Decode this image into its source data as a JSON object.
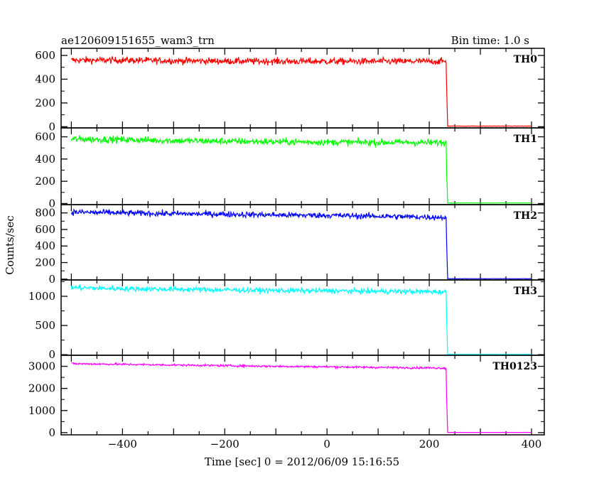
{
  "chart_data": {
    "type": "line",
    "title": "ae120609151655_wam3_trn",
    "bin_time": "Bin time: 1.0 s",
    "xlabel": "Time [sec] 0 = 2012/06/09 15:16:55",
    "ylabel": "Counts/sec",
    "xlim": [
      -520,
      425
    ],
    "xticks": [
      -400,
      -200,
      0,
      200,
      400
    ],
    "grid": false,
    "panels": [
      {
        "name": "TH0",
        "color": "#ff0000",
        "ylim": [
          -10,
          660
        ],
        "yticks": [
          0,
          200,
          400,
          600
        ],
        "points": [
          [
            -500,
            560
          ],
          [
            -400,
            560
          ],
          [
            -300,
            555
          ],
          [
            -200,
            552
          ],
          [
            -100,
            550
          ],
          [
            0,
            550
          ],
          [
            100,
            550
          ],
          [
            200,
            550
          ],
          [
            233,
            550
          ],
          [
            234,
            320
          ],
          [
            236,
            5
          ],
          [
            400,
            5
          ]
        ],
        "noise": 28
      },
      {
        "name": "TH1",
        "color": "#00ff00",
        "ylim": [
          -10,
          680
        ],
        "yticks": [
          0,
          200,
          400,
          600
        ],
        "points": [
          [
            -500,
            580
          ],
          [
            -400,
            575
          ],
          [
            -300,
            565
          ],
          [
            -200,
            560
          ],
          [
            -100,
            555
          ],
          [
            0,
            552
          ],
          [
            100,
            550
          ],
          [
            200,
            548
          ],
          [
            233,
            548
          ],
          [
            234,
            280
          ],
          [
            236,
            5
          ],
          [
            400,
            5
          ]
        ],
        "noise": 30
      },
      {
        "name": "TH2",
        "color": "#0000ff",
        "ylim": [
          -10,
          900
        ],
        "yticks": [
          0,
          200,
          400,
          600,
          800
        ],
        "points": [
          [
            -500,
            810
          ],
          [
            -400,
            800
          ],
          [
            -300,
            790
          ],
          [
            -200,
            785
          ],
          [
            -100,
            775
          ],
          [
            0,
            770
          ],
          [
            100,
            760
          ],
          [
            200,
            750
          ],
          [
            233,
            745
          ],
          [
            234,
            420
          ],
          [
            236,
            5
          ],
          [
            400,
            5
          ]
        ],
        "noise": 35
      },
      {
        "name": "TH3",
        "color": "#00ffff",
        "ylim": [
          -10,
          1280
        ],
        "yticks": [
          0,
          500,
          1000
        ],
        "points": [
          [
            -500,
            1150
          ],
          [
            -400,
            1130
          ],
          [
            -300,
            1120
          ],
          [
            -200,
            1110
          ],
          [
            -100,
            1100
          ],
          [
            0,
            1095
          ],
          [
            100,
            1085
          ],
          [
            200,
            1080
          ],
          [
            233,
            1075
          ],
          [
            234,
            600
          ],
          [
            236,
            5
          ],
          [
            400,
            5
          ]
        ],
        "noise": 45
      },
      {
        "name": "TH0123",
        "color": "#ff00ff",
        "ylim": [
          -100,
          3500
        ],
        "yticks": [
          0,
          1000,
          2000,
          3000
        ],
        "points": [
          [
            -500,
            3120
          ],
          [
            -400,
            3090
          ],
          [
            -300,
            3060
          ],
          [
            -200,
            3030
          ],
          [
            -100,
            3000
          ],
          [
            0,
            2980
          ],
          [
            100,
            2950
          ],
          [
            200,
            2930
          ],
          [
            233,
            2920
          ],
          [
            234,
            1500
          ],
          [
            236,
            10
          ],
          [
            400,
            10
          ]
        ],
        "noise": 45
      }
    ]
  }
}
